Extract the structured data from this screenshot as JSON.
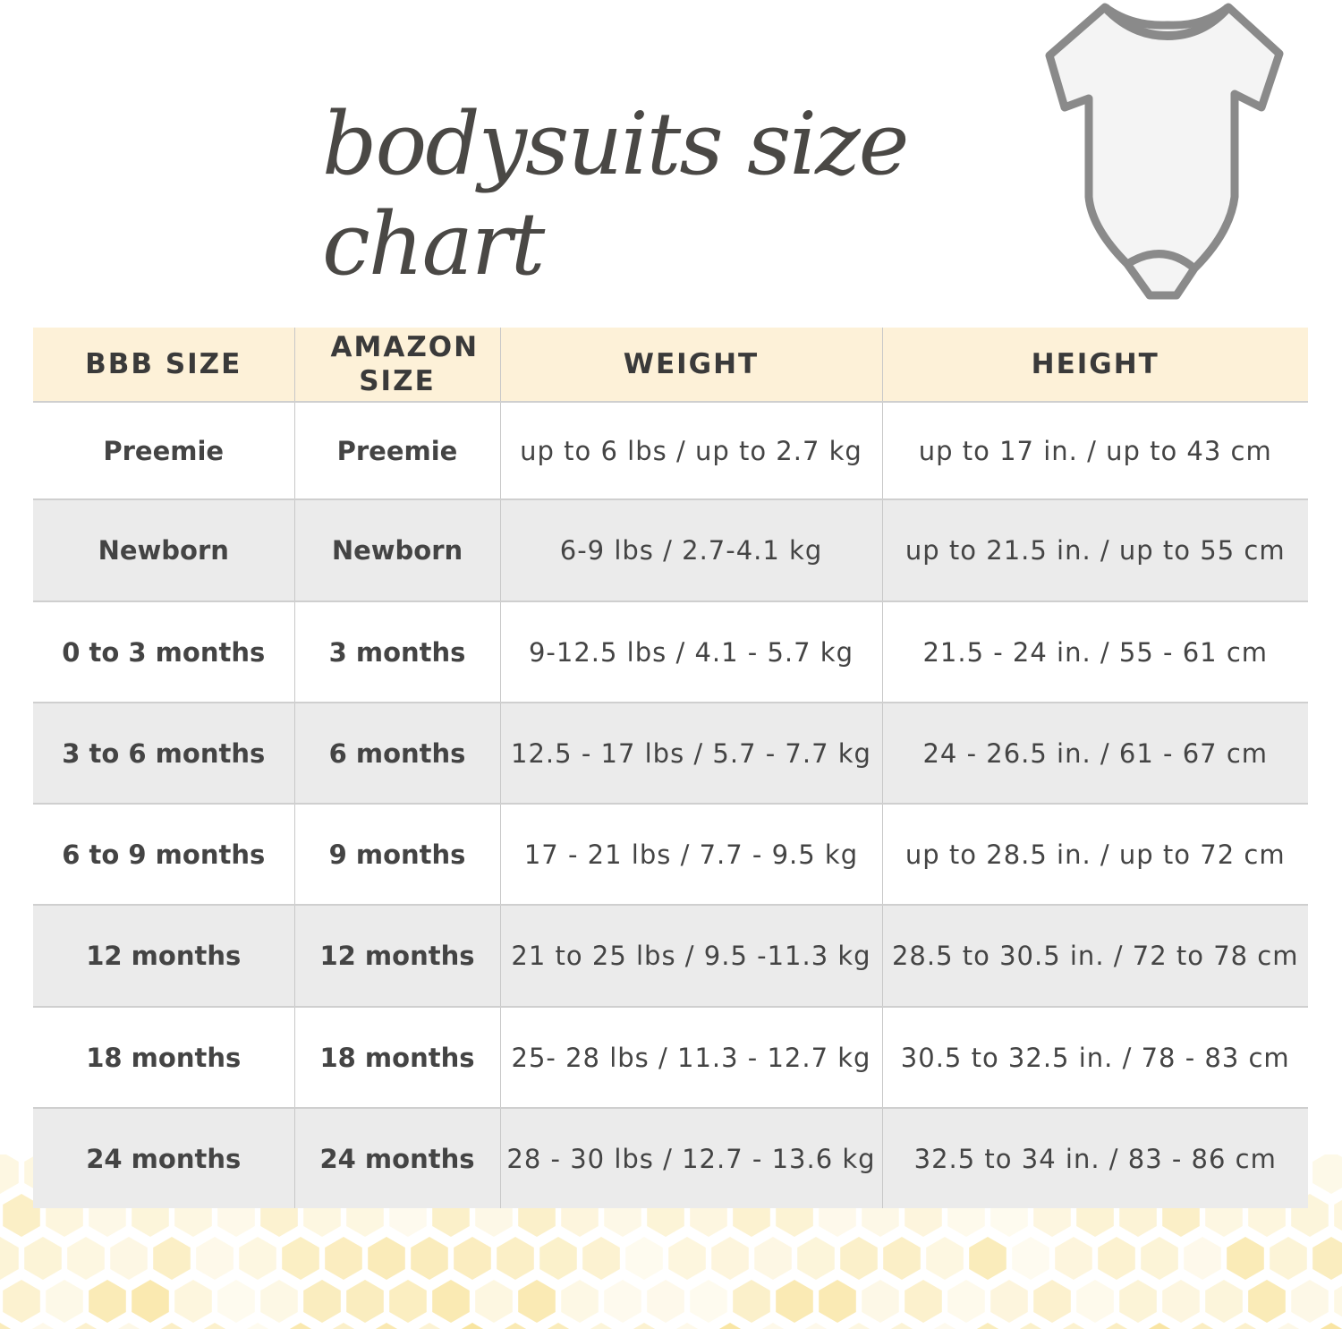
{
  "title": "bodysuits size chart",
  "colors": {
    "header_bg": "#fdf1d8",
    "alt_row_bg": "#ebebeb",
    "honeycomb": "#f5d770",
    "text": "#3d3d3d"
  },
  "image": {
    "icon": "bodysuit-photo"
  },
  "table": {
    "headers": [
      "BBB SIZE",
      "AMAZON SIZE",
      "WEIGHT",
      "HEIGHT"
    ],
    "rows": [
      [
        "Preemie",
        "Preemie",
        "up to 6 lbs / up to 2.7 kg",
        "up to 17 in. / up to 43 cm"
      ],
      [
        "Newborn",
        "Newborn",
        "6-9 lbs / 2.7-4.1 kg",
        "up to 21.5 in. / up to 55 cm"
      ],
      [
        "0 to 3 months",
        "3 months",
        "9-12.5 lbs / 4.1 - 5.7 kg",
        "21.5 - 24 in. / 55 - 61 cm"
      ],
      [
        "3 to 6 months",
        "6 months",
        "12.5 - 17 lbs / 5.7 - 7.7 kg",
        "24 - 26.5 in. / 61 - 67 cm"
      ],
      [
        "6 to 9 months",
        "9 months",
        "17 - 21 lbs / 7.7 - 9.5 kg",
        "up to 28.5 in. / up to 72 cm"
      ],
      [
        "12 months",
        "12 months",
        "21 to 25 lbs / 9.5 -11.3 kg",
        "28.5 to 30.5 in. / 72 to 78 cm"
      ],
      [
        "18 months",
        "18 months",
        "25- 28 lbs / 11.3 - 12.7 kg",
        "30.5 to 32.5 in. / 78 - 83 cm"
      ],
      [
        "24 months",
        "24 months",
        "28 - 30 lbs / 12.7 - 13.6 kg",
        "32.5 to 34 in. / 83 - 86 cm"
      ]
    ]
  }
}
